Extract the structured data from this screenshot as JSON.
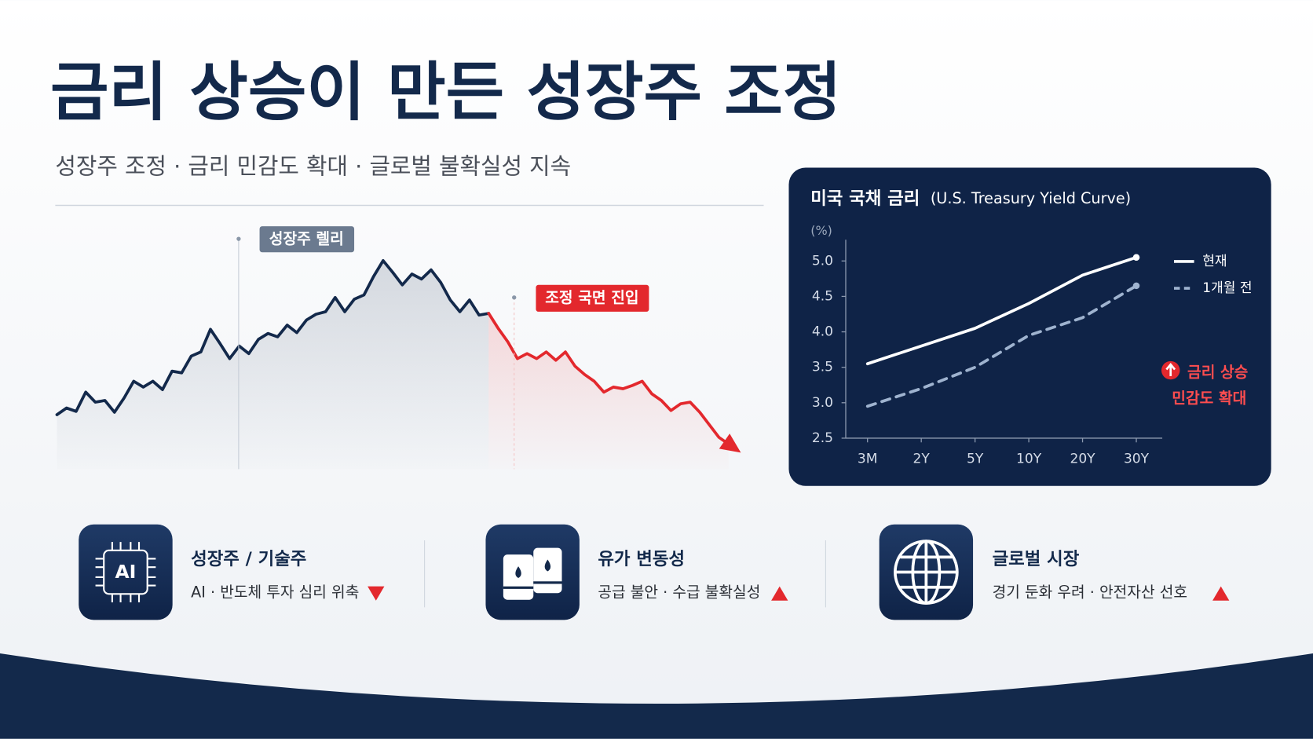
{
  "header": {
    "title": "금리 상승이 만든 성장주 조정",
    "subtitle": "성장주 조정 · 금리 민감도 확대 · 글로벌 불확실성 지속"
  },
  "chart_data": [
    {
      "type": "line",
      "area": true,
      "series": [
        {
          "color": "#13294b",
          "values": [
            65,
            73,
            69,
            92,
            80,
            82,
            68,
            85,
            105,
            98,
            105,
            95,
            117,
            115,
            135,
            140,
            167,
            150,
            132,
            147,
            138,
            155,
            162,
            158,
            172,
            163,
            178,
            185,
            188,
            205,
            188,
            203,
            208,
            230,
            249,
            235,
            220,
            233,
            227,
            238,
            223,
            202,
            188,
            202,
            184,
            186,
            null,
            null,
            null,
            null,
            null,
            null,
            null,
            null,
            null,
            null,
            null,
            null,
            null,
            null,
            null,
            null,
            null,
            null,
            null,
            null,
            null,
            null,
            null,
            null,
            null
          ]
        },
        {
          "color": "#e3282d",
          "values": [
            null,
            null,
            null,
            null,
            null,
            null,
            null,
            null,
            null,
            null,
            null,
            null,
            null,
            null,
            null,
            null,
            null,
            null,
            null,
            null,
            null,
            null,
            null,
            null,
            null,
            null,
            null,
            null,
            null,
            null,
            null,
            null,
            null,
            null,
            null,
            null,
            null,
            null,
            null,
            null,
            null,
            null,
            null,
            null,
            null,
            186,
            168,
            152,
            132,
            138,
            132,
            140,
            130,
            140,
            123,
            113,
            105,
            92,
            98,
            96,
            100,
            105,
            90,
            82,
            70,
            78,
            80,
            68,
            53,
            38,
            30
          ]
        }
      ],
      "annotations": [
        {
          "text": "성장주 렐리"
        },
        {
          "text": "조정 국면 진입"
        }
      ]
    },
    {
      "type": "line",
      "title": "미국 국채 금리",
      "subtitle": "(U.S. Treasury Yield Curve)",
      "ylabel": "(%)",
      "categories": [
        "3M",
        "2Y",
        "5Y",
        "10Y",
        "20Y",
        "30Y"
      ],
      "series": [
        {
          "name": "현재",
          "color": "#ffffff",
          "values": [
            3.55,
            3.8,
            4.05,
            4.4,
            4.8,
            5.05
          ]
        },
        {
          "name": "1개월 전",
          "color": "#9fb3cf",
          "dashed": true,
          "values": [
            2.95,
            3.2,
            3.5,
            3.95,
            4.2,
            4.65
          ]
        }
      ],
      "ylim": [
        2.5,
        5.3
      ],
      "yticks": [
        2.5,
        {
          "value": 3,
          "label": "3.0"
        },
        3.5,
        {
          "value": 4,
          "label": "4.0"
        },
        4.5,
        {
          "value": 5,
          "label": "5.0"
        }
      ],
      "legend": "right",
      "annotations": [
        {
          "text": "금리 상승"
        },
        {
          "text": "민감도 확대"
        }
      ]
    }
  ],
  "cards": [
    {
      "icon_text": "AI",
      "title": "성장주 / 기술주",
      "description": "AI · 반도체 투자 심리 위축"
    },
    {
      "title": "유가 변동성",
      "description": "공급 불안 · 수급 불확실성"
    },
    {
      "title": "글로벌 시장",
      "description": "경기 둔화 우려 · 안전자산 선호"
    }
  ]
}
